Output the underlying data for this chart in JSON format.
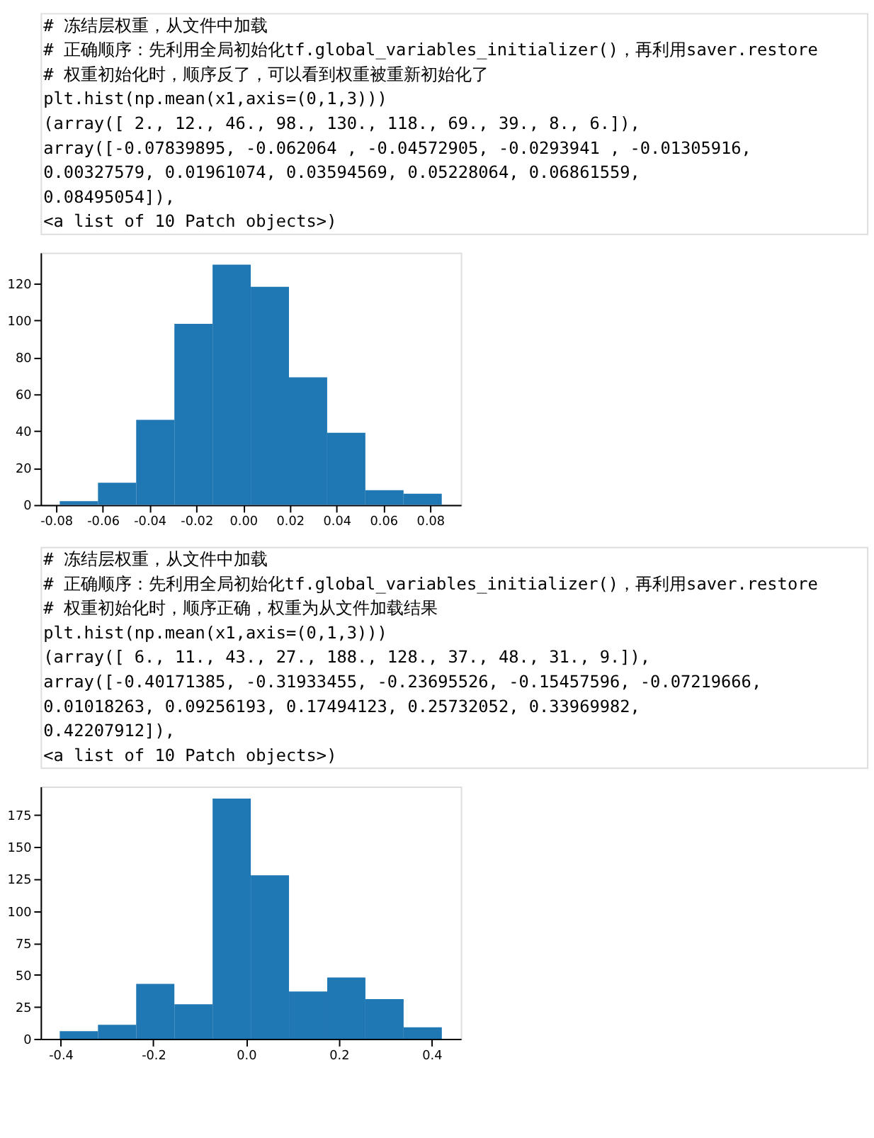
{
  "chart_data": [
    {
      "type": "histogram",
      "color": "#1f77b4",
      "bins": [
        -0.07839895,
        -0.062064,
        -0.04572905,
        -0.0293941,
        -0.01305916,
        0.00327579,
        0.01961074,
        0.03594569,
        0.05228064,
        0.06861559,
        0.08495054
      ],
      "values": [
        2,
        12,
        46,
        98,
        130,
        118,
        69,
        39,
        8,
        6
      ],
      "xlim": [
        -0.0866,
        0.0931
      ],
      "ylim": [
        0,
        136.5
      ],
      "xticks": [
        {
          "value": -0.08,
          "label": "-0.08"
        },
        {
          "value": -0.06,
          "label": "-0.06"
        },
        {
          "value": -0.04,
          "label": "-0.04"
        },
        {
          "value": -0.02,
          "label": "-0.02"
        },
        {
          "value": 0,
          "label": "0.00"
        },
        {
          "value": 0.02,
          "label": "0.02"
        },
        {
          "value": 0.04,
          "label": "0.04"
        },
        {
          "value": 0.06,
          "label": "0.06"
        },
        {
          "value": 0.08,
          "label": "0.08"
        }
      ],
      "yticks": [
        0,
        20,
        40,
        60,
        80,
        100,
        120
      ],
      "annotations": [
        "# 冻结层权重，从文件中加载",
        "# 正确顺序：先利用全局初始化tf.global_variables_initializer()，再利用saver.restore",
        "# 权重初始化时，顺序反了，可以看到权重被重新初始化了",
        "plt.hist(np.mean(x1,axis=(0,1,3)))",
        "(array([   2.,   12.,   46.,   98.,  130.,  118.,   69.,   39.,    8.,    6.]),",
        " array([-0.07839895, -0.062064  , -0.04572905, -0.0293941 , -0.01305916,",
        "         0.00327579,  0.01961074,  0.03594569,  0.05228064,  0.06861559,",
        "         0.08495054]),",
        " <a list of 10 Patch objects>)"
      ]
    },
    {
      "type": "histogram",
      "color": "#1f77b4",
      "bins": [
        -0.40171385,
        -0.31933455,
        -0.23695526,
        -0.15457596,
        -0.07219666,
        0.01018263,
        0.09256193,
        0.17494123,
        0.25732052,
        0.33969982,
        0.42207912
      ],
      "values": [
        6,
        11,
        43,
        27,
        188,
        128,
        37,
        48,
        31,
        9
      ],
      "xlim": [
        -0.443,
        0.463
      ],
      "ylim": [
        0,
        197.4
      ],
      "xticks": [
        {
          "value": -0.4,
          "label": "-0.4"
        },
        {
          "value": -0.2,
          "label": "-0.2"
        },
        {
          "value": 0,
          "label": "0.0"
        },
        {
          "value": 0.2,
          "label": "0.2"
        },
        {
          "value": 0.4,
          "label": "0.4"
        }
      ],
      "yticks": [
        0,
        25,
        50,
        75,
        100,
        125,
        150,
        175
      ],
      "annotations": [
        "# 冻结层权重，从文件中加载",
        "# 正确顺序：先利用全局初始化tf.global_variables_initializer()，再利用saver.restore",
        "# 权重初始化时，顺序正确，权重为从文件加载结果",
        "plt.hist(np.mean(x1,axis=(0,1,3)))",
        "(array([   6.,   11.,   43.,   27.,  188.,  128.,   37.,   48.,   31.,    9.]),",
        " array([-0.40171385, -0.31933455, -0.23695526, -0.15457596, -0.07219666,",
        "         0.01018263,  0.09256193,  0.17494123,  0.25732052,  0.33969982,",
        "         0.42207912]),",
        " <a list of 10 Patch objects>)"
      ]
    }
  ]
}
